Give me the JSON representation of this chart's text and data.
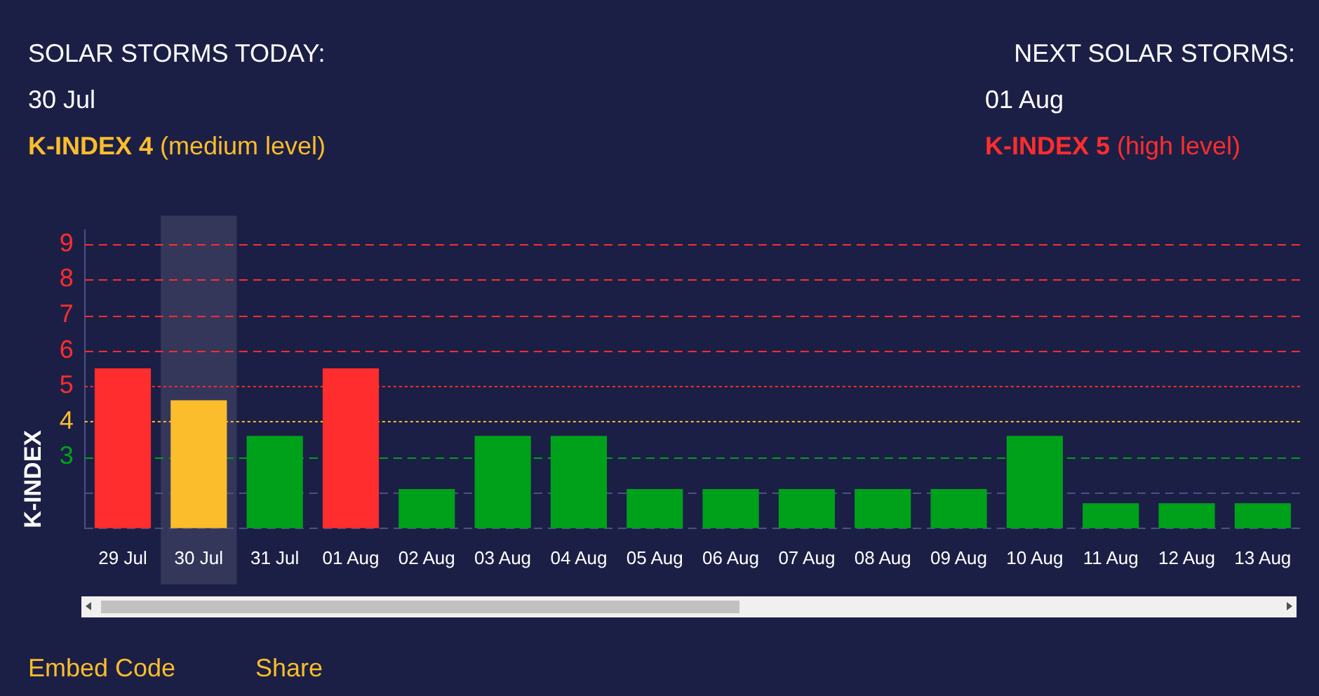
{
  "chart_data": {
    "type": "bar",
    "ylabel": "K-INDEX",
    "categories": [
      "29 Jul",
      "30 Jul",
      "31 Jul",
      "01 Aug",
      "02 Aug",
      "03 Aug",
      "04 Aug",
      "05 Aug",
      "06 Aug",
      "07 Aug",
      "08 Aug",
      "09 Aug",
      "10 Aug",
      "11 Aug",
      "12 Aug",
      "13 Aug"
    ],
    "values": [
      5.5,
      4.6,
      3.6,
      5.5,
      2.1,
      3.6,
      3.6,
      2.1,
      2.1,
      2.1,
      2.1,
      2.1,
      3.6,
      1.7,
      1.7,
      1.7
    ],
    "colors": [
      "#ff2d2d",
      "#fbbd2c",
      "#00a11a",
      "#ff2d2d",
      "#00a11a",
      "#00a11a",
      "#00a11a",
      "#00a11a",
      "#00a11a",
      "#00a11a",
      "#00a11a",
      "#00a11a",
      "#00a11a",
      "#00a11a",
      "#00a11a",
      "#00a11a"
    ],
    "ylim": [
      1,
      9.4
    ],
    "yticks": [
      3,
      4,
      5,
      6,
      7,
      8,
      9
    ],
    "grid": false,
    "legend": false,
    "ref_lines": [
      {
        "axis": "y",
        "value": 1,
        "color": "#4a5088",
        "line_style": "dashed"
      },
      {
        "axis": "y",
        "value": 2,
        "color": "#4a5088",
        "line_style": "dashed"
      },
      {
        "axis": "y",
        "value": 3,
        "color": "#00a11a",
        "line_style": "dashed"
      },
      {
        "axis": "y",
        "value": 4,
        "color": "#fbbd2c",
        "line_style": "dotted"
      },
      {
        "axis": "y",
        "value": 5,
        "color": "#ff2d2d",
        "line_style": "dotted"
      },
      {
        "axis": "y",
        "value": 6,
        "color": "#ff2d2d",
        "line_style": "dashed"
      },
      {
        "axis": "y",
        "value": 7,
        "color": "#ff2d2d",
        "line_style": "dashed"
      },
      {
        "axis": "y",
        "value": 8,
        "color": "#ff2d2d",
        "line_style": "dashed"
      },
      {
        "axis": "y",
        "value": 9,
        "color": "#ff2d2d",
        "line_style": "dashed"
      }
    ],
    "bands": [
      {
        "axis": "x",
        "from": "30 Jul",
        "to": "30 Jul",
        "color": "#34375a"
      }
    ],
    "annotations": [
      "SOLAR STORMS TODAY:",
      "30 Jul",
      "K-INDEX 4",
      "(medium level)",
      "NEXT SOLAR STORMS:",
      "01 Aug",
      "K-INDEX 5",
      "(high level)",
      "Embed Code",
      "Share"
    ]
  }
}
